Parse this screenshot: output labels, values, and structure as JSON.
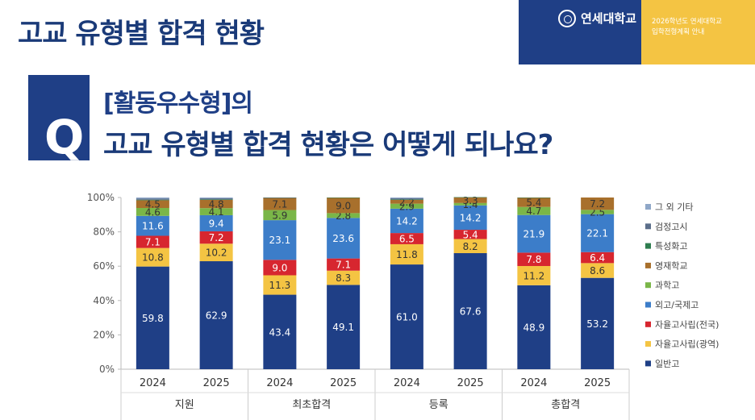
{
  "header": {
    "title": "고교 유형별 합격 현황",
    "brand_name": "연세대학교",
    "brand_line1": "2026학년도 연세대학교",
    "brand_line2": "입학전형계획 안내"
  },
  "question": {
    "letter": "Q",
    "line1": "[활동우수형]의",
    "line2": "고교 유형별 합격 현황은 어떻게 되나요?"
  },
  "chart_data": {
    "type": "bar",
    "stacked": true,
    "groups": [
      "지원",
      "최초합격",
      "등록",
      "총합격"
    ],
    "categories": [
      "2024",
      "2025",
      "2024",
      "2025",
      "2024",
      "2025",
      "2024",
      "2025"
    ],
    "y_ticks": [
      "0%",
      "20%",
      "40%",
      "60%",
      "80%",
      "100%"
    ],
    "ylim": [
      0,
      100
    ],
    "legend_position": "right",
    "series": [
      {
        "name": "일반고",
        "color": "#1f3f86",
        "label_color": "#ffffff",
        "values": [
          59.8,
          62.9,
          43.4,
          49.1,
          61.0,
          67.6,
          48.9,
          53.2
        ],
        "labels": [
          "59.8",
          "62.9",
          "43.4",
          "49.1",
          "61.0",
          "67.6",
          "48.9",
          "53.2"
        ]
      },
      {
        "name": "자율고사립(광역)",
        "color": "#f4c443",
        "label_color": "#333333",
        "values": [
          10.8,
          10.2,
          11.3,
          8.3,
          11.8,
          8.2,
          11.2,
          8.6
        ],
        "labels": [
          "10.8",
          "10.2",
          "11.3",
          "8.3",
          "11.8",
          "8.2",
          "11.2",
          "8.6"
        ]
      },
      {
        "name": "자율고사립(전국)",
        "color": "#d7262f",
        "label_color": "#ffffff",
        "values": [
          7.1,
          7.2,
          9.0,
          7.1,
          6.5,
          5.4,
          7.8,
          6.4
        ],
        "labels": [
          "7.1",
          "7.2",
          "9.0",
          "7.1",
          "6.5",
          "5.4",
          "7.8",
          "6.4"
        ]
      },
      {
        "name": "외고/국제고",
        "color": "#3c7dc9",
        "label_color": "#ffffff",
        "values": [
          11.6,
          9.4,
          23.1,
          23.6,
          14.2,
          14.2,
          21.9,
          22.1
        ],
        "labels": [
          "11.6",
          "9.4",
          "23.1",
          "23.6",
          "14.2",
          "14.2",
          "21.9",
          "22.1"
        ]
      },
      {
        "name": "과학고",
        "color": "#7ab648",
        "label_color": "#333333",
        "values": [
          4.6,
          4.1,
          5.9,
          2.8,
          2.9,
          1.4,
          4.7,
          2.5
        ],
        "labels": [
          "4.6",
          "4.1",
          "5.9",
          "2.8",
          "2.9",
          "1.4",
          "4.7",
          "2.5"
        ]
      },
      {
        "name": "영재학교",
        "color": "#a8702c",
        "label_color": "#333333",
        "values": [
          4.5,
          4.8,
          7.1,
          9.0,
          2.2,
          3.3,
          5.4,
          7.2
        ],
        "labels": [
          "4.5",
          "4.8",
          "7.1",
          "9.0",
          "2.2",
          "3.3",
          "5.4",
          "7.2"
        ]
      },
      {
        "name": "특성화고",
        "color": "#2e7d4f",
        "label_color": "#333333",
        "values": [
          0.3,
          0.3,
          0.1,
          0.1,
          0.3,
          0.1,
          0.1,
          0.0
        ],
        "labels": [
          "",
          "",
          "",
          "",
          "",
          "",
          "",
          ""
        ]
      },
      {
        "name": "검정고시",
        "color": "#5b6e8a",
        "label_color": "#333333",
        "values": [
          0.6,
          0.6,
          0.1,
          0.0,
          0.6,
          0.0,
          0.0,
          0.0
        ],
        "labels": [
          "",
          "",
          "",
          "",
          "",
          "",
          "",
          ""
        ]
      },
      {
        "name": "그 외 기타",
        "color": "#8fa7c8",
        "label_color": "#333333",
        "values": [
          0.7,
          0.5,
          0.0,
          0.0,
          0.5,
          0.0,
          0.0,
          0.0
        ],
        "labels": [
          "",
          "",
          "",
          "",
          "",
          "",
          "",
          ""
        ]
      }
    ],
    "legend_order": [
      "그 외 기타",
      "검정고시",
      "특성화고",
      "영재학교",
      "과학고",
      "외고/국제고",
      "자율고사립(전국)",
      "자율고사립(광역)",
      "일반고"
    ]
  }
}
